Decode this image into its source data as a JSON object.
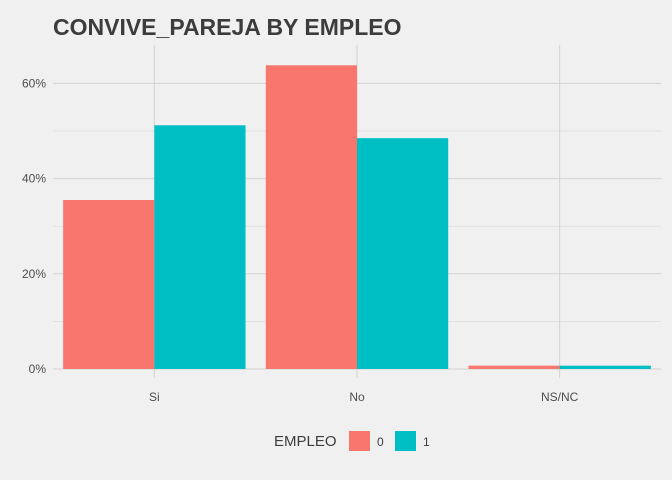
{
  "chart_data": {
    "type": "bar",
    "title": "CONVIVE_PAREJA BY EMPLEO",
    "categories": [
      "Si",
      "No",
      "NS/NC"
    ],
    "series": [
      {
        "name": "0",
        "values": [
          35.5,
          63.8,
          0.7
        ],
        "color": "#f8766d"
      },
      {
        "name": "1",
        "values": [
          51.2,
          48.5,
          0.7
        ],
        "color": "#00bfc4"
      }
    ],
    "xlabel": "",
    "ylabel": "",
    "ylim": [
      0,
      66
    ],
    "yticks": [
      0,
      20,
      40,
      60
    ],
    "ytick_labels": [
      "0%",
      "20%",
      "40%",
      "60%"
    ],
    "grid": true,
    "legend": {
      "title": "EMPLEO",
      "position": "bottom"
    }
  },
  "colors": {
    "background": "#f0f0f0",
    "grid": "#d2d2d2",
    "title": "#3c3c3c"
  }
}
